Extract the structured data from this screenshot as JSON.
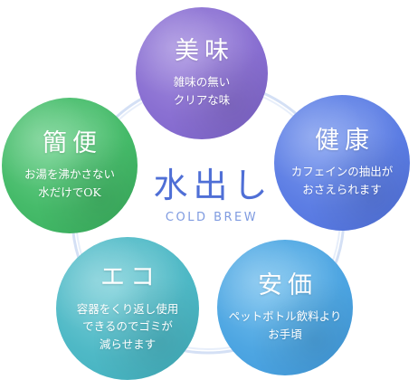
{
  "center": {
    "title": "水出し",
    "subtitle": "COLD BREW"
  },
  "benefits": [
    {
      "title": "美味",
      "description": "雑味の無い\nクリアな味",
      "color": "#8a70d2"
    },
    {
      "title": "健康",
      "description": "カフェインの抽出が\nおさえられます",
      "color": "#5d7ee4"
    },
    {
      "title": "安価",
      "description": "ペットボトル飲料より\nお手頃",
      "color": "#4ea6e2"
    },
    {
      "title": "エコ",
      "description": "容器をくり返し使用\nできるのでゴミが\n減らせます",
      "color": "#4fb9c6"
    },
    {
      "title": "簡便",
      "description": "お湯を沸かさない\n水だけでOK",
      "color": "#46bb6a"
    }
  ],
  "colors": {
    "center_title": "#4f6fd6",
    "center_subtitle": "#7f9be0",
    "ring": "#c9d8f3"
  }
}
